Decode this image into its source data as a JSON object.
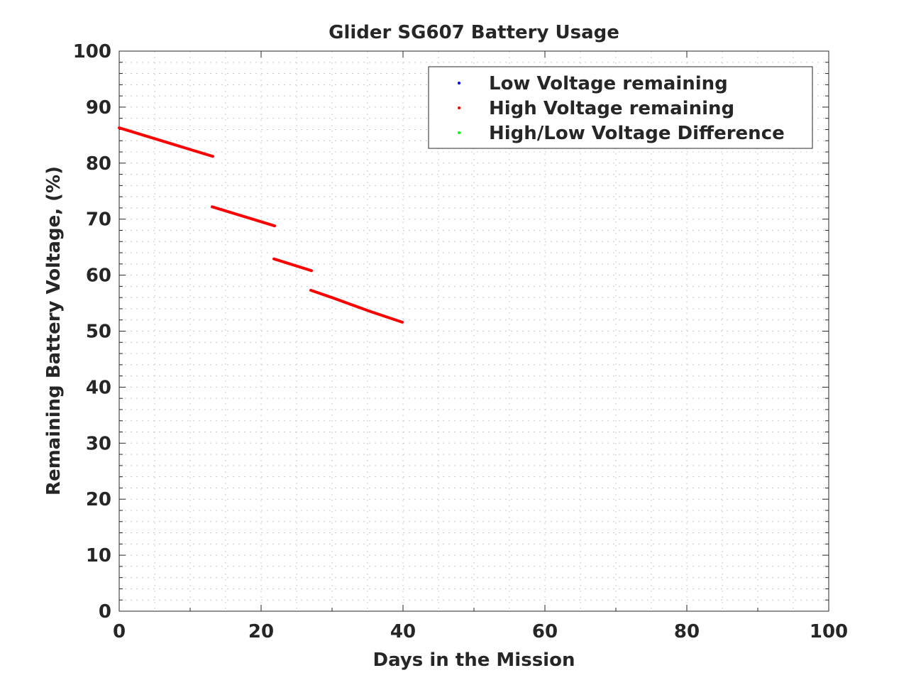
{
  "chart_data": {
    "type": "line",
    "title": "Glider SG607 Battery Usage",
    "xlabel": "Days in the Mission",
    "ylabel": "Remaining Battery Voltage, (%)",
    "xlim": [
      0,
      100
    ],
    "ylim": [
      0,
      100
    ],
    "xticks": [
      "0",
      "20",
      "40",
      "60",
      "80",
      "100"
    ],
    "yticks": [
      "0",
      "10",
      "20",
      "30",
      "40",
      "50",
      "60",
      "70",
      "80",
      "90",
      "100"
    ],
    "grid": "on (major and minor, dotted)",
    "legend_position": "top-right",
    "series": [
      {
        "name": "Low Voltage remaining",
        "color": "#0000ff",
        "segments": []
      },
      {
        "name": "High Voltage remaining",
        "color": "#ff0000",
        "segments": [
          [
            [
              0,
              86.3
            ],
            [
              13.2,
              81.2
            ]
          ],
          [
            [
              13.1,
              72.2
            ],
            [
              21.9,
              68.8
            ]
          ],
          [
            [
              21.8,
              62.9
            ],
            [
              27.1,
              60.8
            ]
          ],
          [
            [
              27.0,
              57.3
            ],
            [
              30.2,
              55.9
            ],
            [
              35.2,
              53.6
            ],
            [
              39.9,
              51.6
            ]
          ]
        ]
      },
      {
        "name": "High/Low Voltage Difference",
        "color": "#00ff00",
        "segments": []
      }
    ]
  }
}
